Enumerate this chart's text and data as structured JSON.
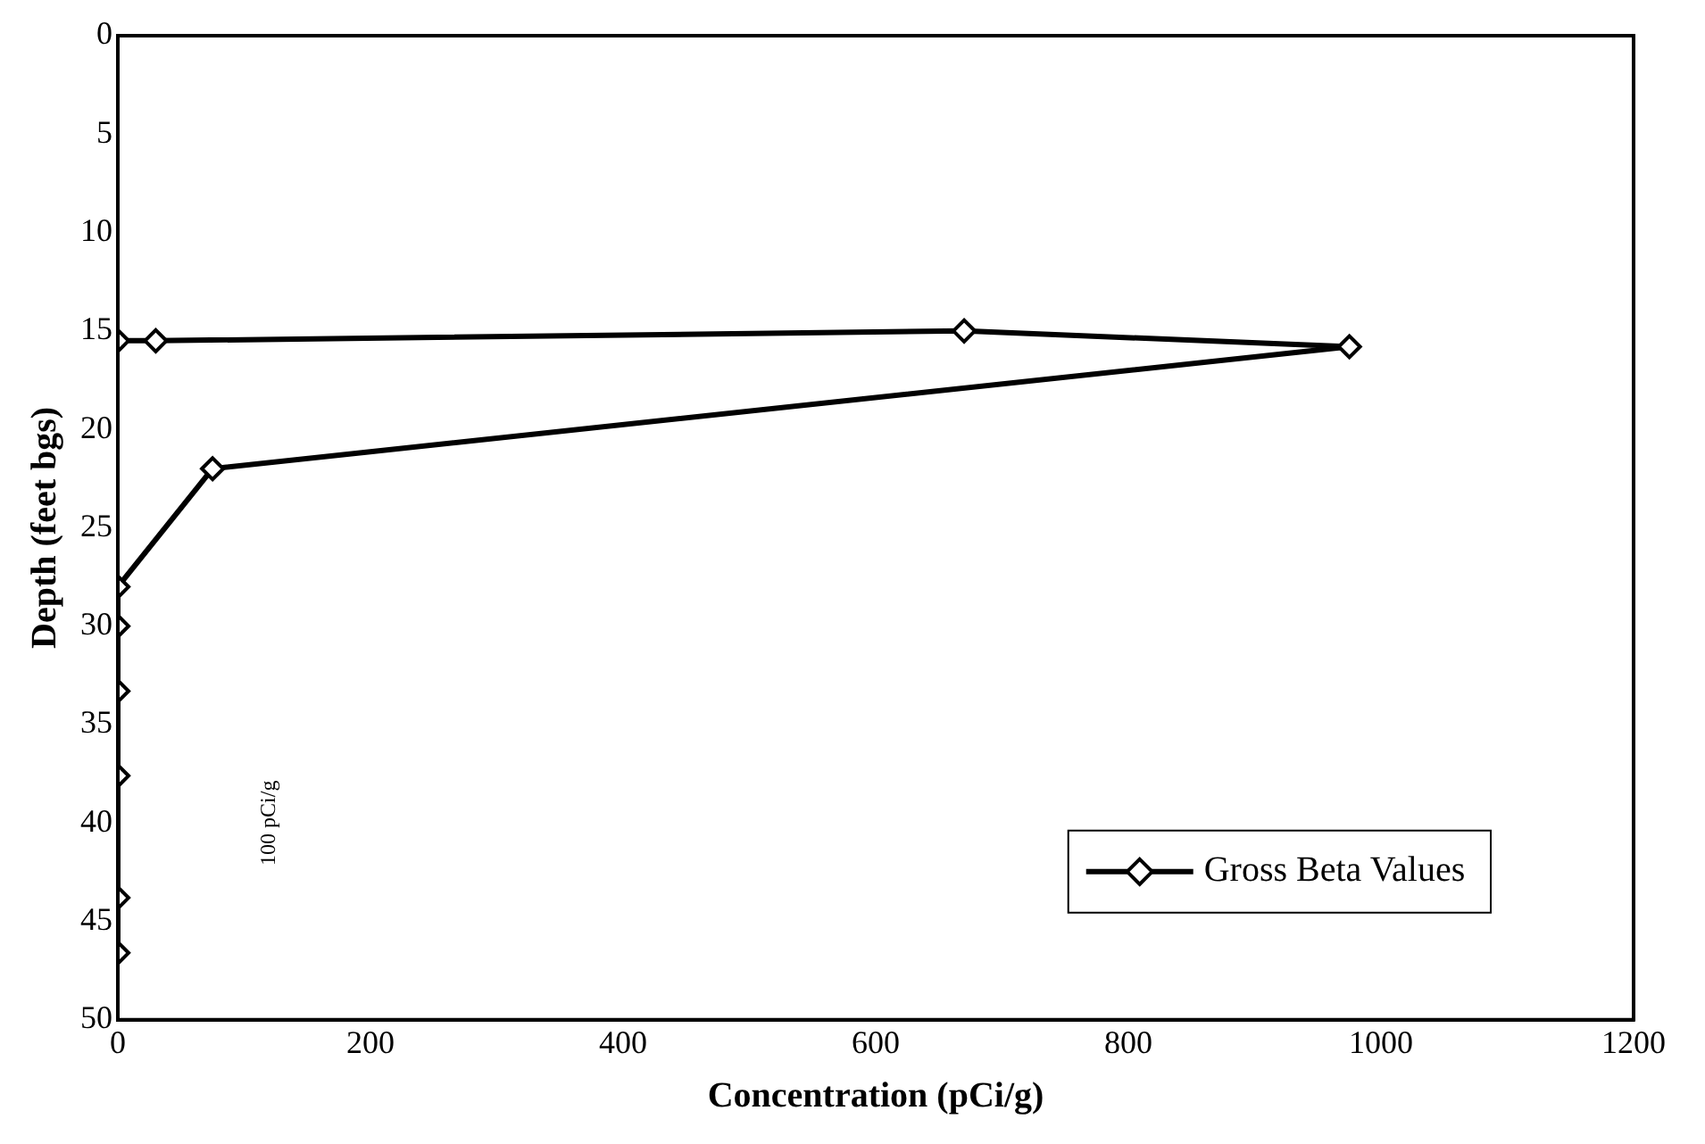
{
  "chart_data": {
    "type": "line",
    "xlabel": "Concentration (pCi/g)",
    "ylabel": "Depth (feet bgs)",
    "xlim": [
      0,
      1200
    ],
    "xticks": [
      0,
      200,
      400,
      600,
      800,
      1000,
      1200
    ],
    "ylim": [
      50,
      0
    ],
    "yticks": [
      0,
      5,
      10,
      15,
      20,
      25,
      30,
      35,
      40,
      45,
      50
    ],
    "grid": false,
    "legend": "bottom right",
    "marker": "diamond",
    "line_style": "solid",
    "annotations": [
      "100 pCi/g"
    ],
    "series": [
      {
        "name": "Gross Beta Values",
        "color": "#000000",
        "x": [
          0,
          30,
          670,
          975,
          75,
          0,
          0,
          0,
          0,
          0,
          0
        ],
        "values": [
          15.5,
          15.5,
          15,
          15.8,
          22,
          28,
          30,
          33.3,
          37.6,
          43.8,
          46.6
        ]
      }
    ]
  }
}
